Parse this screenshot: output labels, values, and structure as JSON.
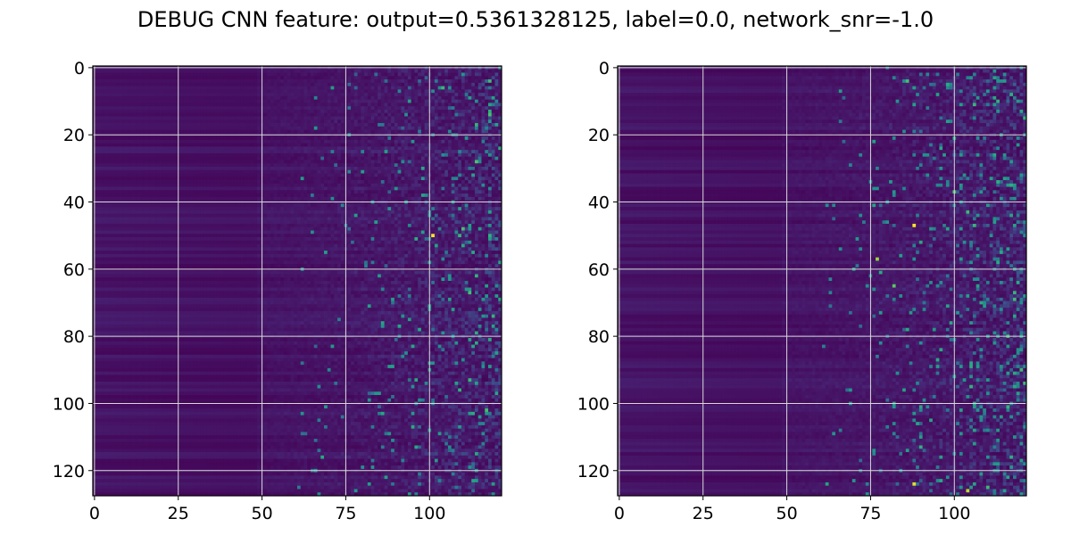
{
  "figure": {
    "title": "DEBUG CNN feature: output=0.5361328125, label=0.0, network_snr=-1.0"
  },
  "chart_data": [
    {
      "type": "heatmap",
      "colormap": "viridis",
      "grid": true,
      "grid_color": "#d9d9d9",
      "xlim": [
        -0.5,
        121.5
      ],
      "ylim": [
        127.5,
        -0.5
      ],
      "x_ticks": [
        0,
        25,
        50,
        75,
        100
      ],
      "y_ticks": [
        0,
        20,
        40,
        60,
        80,
        100,
        120
      ],
      "x_tick_labels": [
        "0",
        "25",
        "50",
        "75",
        "100"
      ],
      "y_tick_labels": [
        "0",
        "20",
        "40",
        "60",
        "80",
        "100",
        "120"
      ],
      "n_rows": 128,
      "n_cols": 122,
      "value_range": [
        0,
        1
      ],
      "description_of_values": "low intensity in columns 0-50, increasing sparse noise toward columns 75-121",
      "hotspots": [
        {
          "x": 101,
          "y": 50,
          "value": 1.0
        },
        {
          "x": 112,
          "y": 67,
          "value": 0.7
        },
        {
          "x": 98,
          "y": 30,
          "value": 0.6
        },
        {
          "x": 96,
          "y": 113,
          "value": 0.6
        },
        {
          "x": 103,
          "y": 109,
          "value": 0.55
        }
      ]
    },
    {
      "type": "heatmap",
      "colormap": "viridis",
      "grid": true,
      "grid_color": "#d9d9d9",
      "xlim": [
        -0.5,
        121.5
      ],
      "ylim": [
        127.5,
        -0.5
      ],
      "x_ticks": [
        0,
        25,
        50,
        75,
        100
      ],
      "y_ticks": [
        0,
        20,
        40,
        60,
        80,
        100,
        120
      ],
      "x_tick_labels": [
        "0",
        "25",
        "50",
        "75",
        "100"
      ],
      "y_tick_labels": [
        "0",
        "20",
        "40",
        "60",
        "80",
        "100",
        "120"
      ],
      "n_rows": 128,
      "n_cols": 122,
      "value_range": [
        0,
        1
      ],
      "description_of_values": "low intensity in columns 0-45, dense noise with many bright pixels in columns 70-121",
      "hotspots": [
        {
          "x": 88,
          "y": 47,
          "value": 1.0
        },
        {
          "x": 88,
          "y": 124,
          "value": 0.95
        },
        {
          "x": 104,
          "y": 126,
          "value": 0.9
        },
        {
          "x": 77,
          "y": 57,
          "value": 0.85
        },
        {
          "x": 82,
          "y": 65,
          "value": 0.75
        },
        {
          "x": 86,
          "y": 4,
          "value": 0.7
        },
        {
          "x": 100,
          "y": 37,
          "value": 0.7
        },
        {
          "x": 90,
          "y": 113,
          "value": 0.65
        }
      ]
    }
  ]
}
